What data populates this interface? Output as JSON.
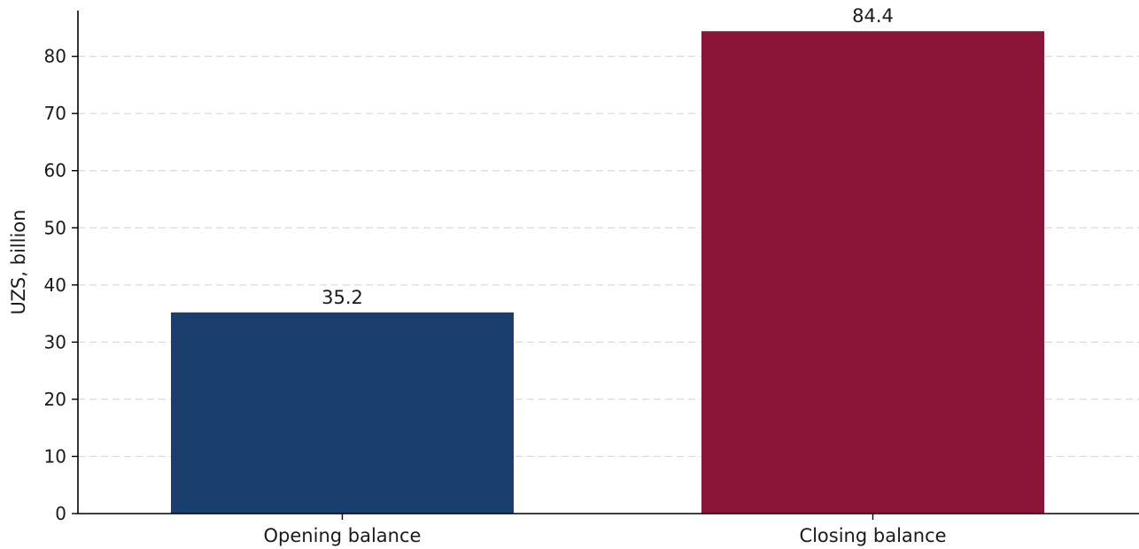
{
  "chart_data": {
    "type": "bar",
    "title": "",
    "xlabel": "",
    "ylabel": "UZS, billion",
    "categories": [
      "Opening balance",
      "Closing balance"
    ],
    "values": [
      35.2,
      84.4
    ],
    "value_labels": [
      "35.2",
      "84.4"
    ],
    "colors": [
      "#1a3e6e",
      "#8b1538"
    ],
    "ylim": [
      0,
      88
    ],
    "yticks": [
      0,
      10,
      20,
      30,
      40,
      50,
      60,
      70,
      80
    ],
    "grid": "horizontal-dashed",
    "legend": "none"
  }
}
